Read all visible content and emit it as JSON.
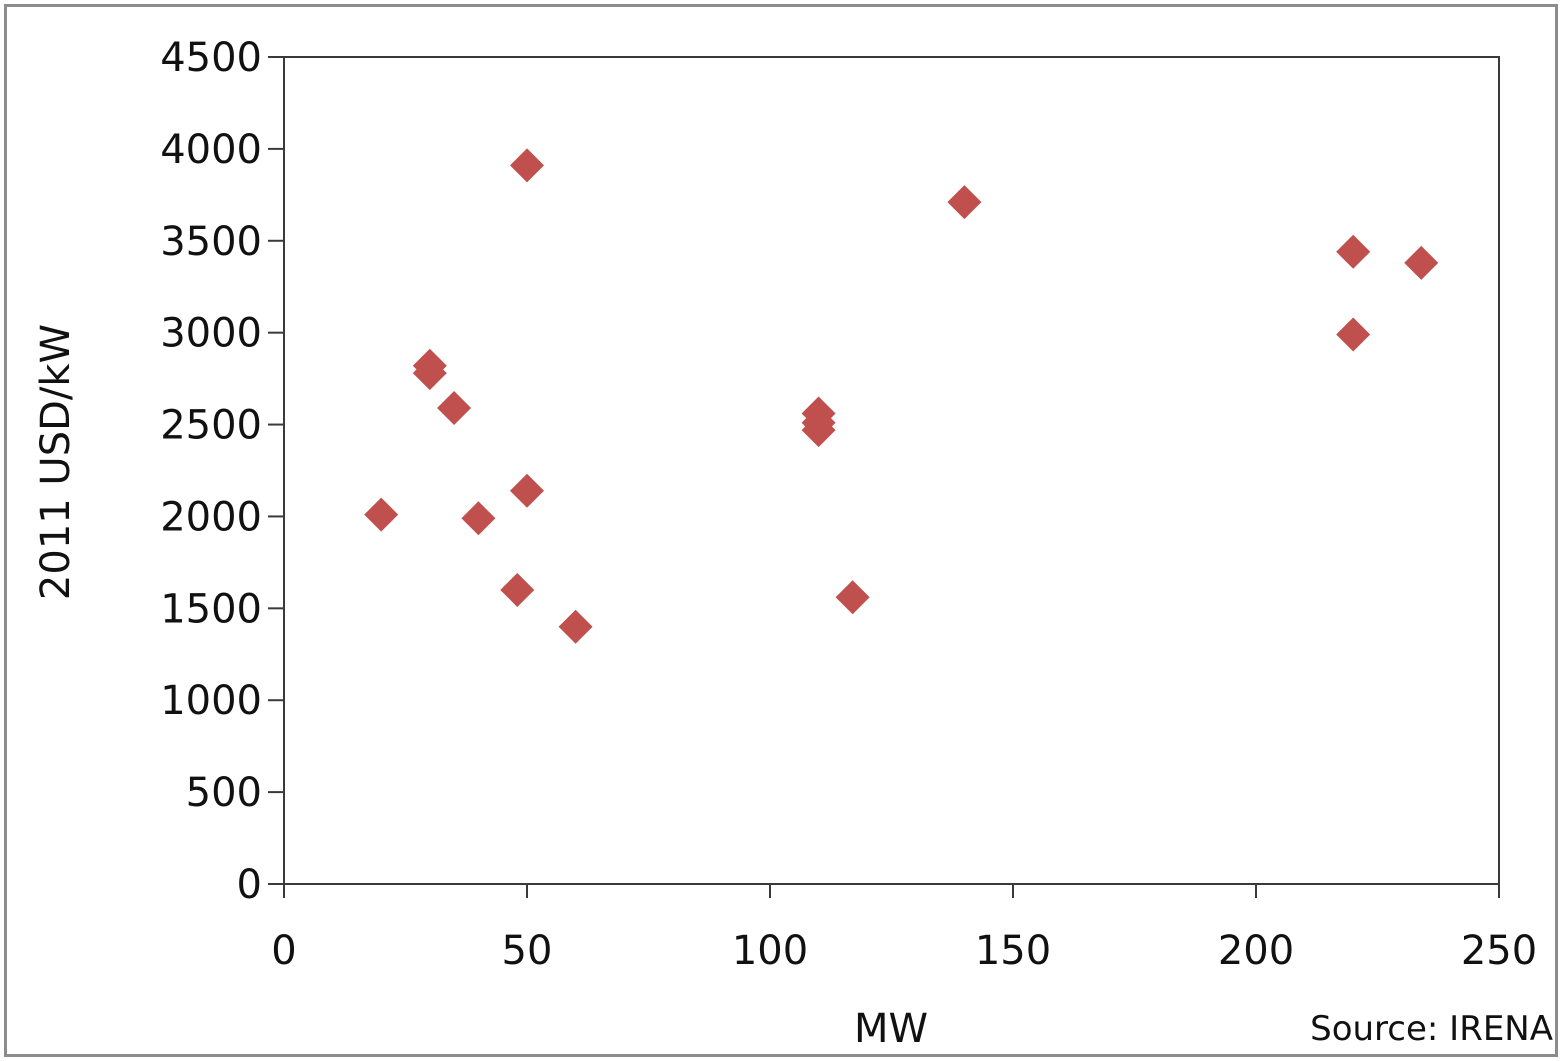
{
  "chart_data": {
    "type": "scatter",
    "xlabel": "MW",
    "ylabel": "2011 USD/kW",
    "xlim": [
      0,
      250
    ],
    "ylim": [
      0,
      4500
    ],
    "xticks": [
      0,
      50,
      100,
      150,
      200,
      250
    ],
    "yticks": [
      0,
      500,
      1000,
      1500,
      2000,
      2500,
      3000,
      3500,
      4000,
      4500
    ],
    "grid": false,
    "marker": "diamond",
    "marker_color": "#C0504D",
    "source": "Source: IRENA",
    "points": [
      {
        "x": 20,
        "y": 2010
      },
      {
        "x": 30,
        "y": 2820
      },
      {
        "x": 30,
        "y": 2780
      },
      {
        "x": 35,
        "y": 2590
      },
      {
        "x": 40,
        "y": 1990
      },
      {
        "x": 48,
        "y": 1600
      },
      {
        "x": 50,
        "y": 3910
      },
      {
        "x": 50,
        "y": 2140
      },
      {
        "x": 60,
        "y": 1400
      },
      {
        "x": 110,
        "y": 2560
      },
      {
        "x": 110,
        "y": 2510
      },
      {
        "x": 110,
        "y": 2470
      },
      {
        "x": 117,
        "y": 1560
      },
      {
        "x": 140,
        "y": 3710
      },
      {
        "x": 220,
        "y": 3440
      },
      {
        "x": 220,
        "y": 2990
      },
      {
        "x": 234,
        "y": 3380
      }
    ]
  }
}
